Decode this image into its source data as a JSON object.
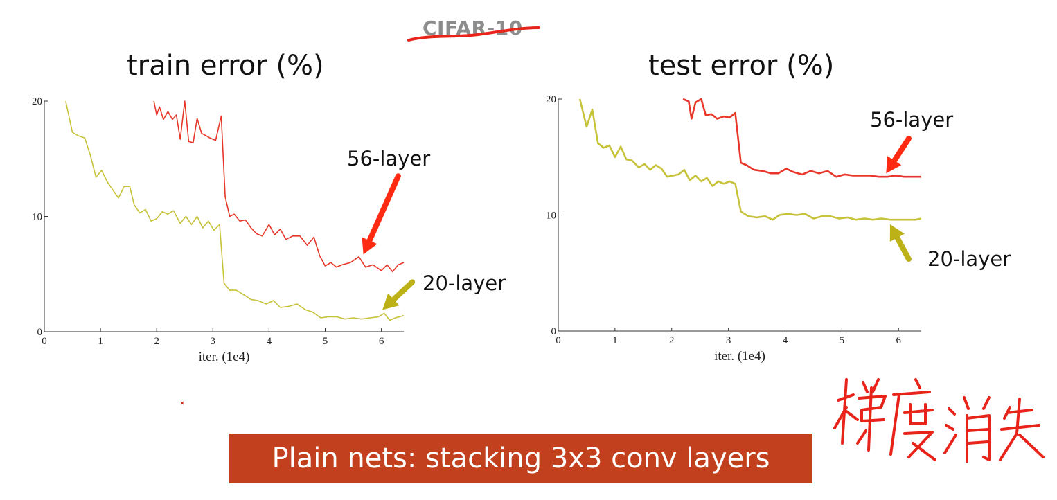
{
  "header": {
    "crossed_out_label": "CIFAR-10",
    "handwriting": "梯度消失"
  },
  "banner": {
    "text": "Plain nets: stacking 3x3 conv layers"
  },
  "colors": {
    "layer56": "#e8362a",
    "layer20": "#c6c23a",
    "arrow56": "#ff2a12",
    "arrow20": "#bdb118",
    "annotation_red": "#e8241a",
    "banner_bg": "#c2401d"
  },
  "chart_data": [
    {
      "type": "line",
      "title": "train error (%)",
      "xlabel": "iter. (1e4)",
      "ylabel": "",
      "xlim": [
        0,
        6.4
      ],
      "ylim": [
        0,
        20
      ],
      "x_ticks": [
        "0",
        "1",
        "2",
        "3",
        "4",
        "5",
        "6"
      ],
      "y_ticks": [
        "0",
        "10",
        "20"
      ],
      "series": [
        {
          "name": "56-layer",
          "color": "#e8362a",
          "points": [
            [
              1.95,
              20.0
            ],
            [
              2.0,
              18.8
            ],
            [
              2.05,
              19.5
            ],
            [
              2.12,
              18.4
            ],
            [
              2.2,
              19.1
            ],
            [
              2.28,
              18.4
            ],
            [
              2.35,
              18.8
            ],
            [
              2.42,
              16.7
            ],
            [
              2.5,
              20.0
            ],
            [
              2.57,
              16.5
            ],
            [
              2.65,
              16.4
            ],
            [
              2.72,
              18.5
            ],
            [
              2.8,
              17.2
            ],
            [
              2.88,
              17.0
            ],
            [
              2.95,
              16.8
            ],
            [
              3.05,
              16.6
            ],
            [
              3.15,
              18.7
            ],
            [
              3.22,
              11.7
            ],
            [
              3.3,
              10.0
            ],
            [
              3.38,
              10.2
            ],
            [
              3.48,
              9.6
            ],
            [
              3.58,
              9.7
            ],
            [
              3.68,
              9.0
            ],
            [
              3.78,
              8.5
            ],
            [
              3.88,
              8.3
            ],
            [
              4.0,
              9.3
            ],
            [
              4.1,
              8.4
            ],
            [
              4.2,
              8.9
            ],
            [
              4.3,
              8.0
            ],
            [
              4.42,
              8.3
            ],
            [
              4.55,
              8.3
            ],
            [
              4.68,
              7.5
            ],
            [
              4.8,
              8.2
            ],
            [
              4.9,
              6.6
            ],
            [
              5.0,
              5.7
            ],
            [
              5.1,
              6.0
            ],
            [
              5.2,
              5.6
            ],
            [
              5.3,
              5.8
            ],
            [
              5.45,
              6.0
            ],
            [
              5.6,
              6.5
            ],
            [
              5.72,
              5.6
            ],
            [
              5.85,
              5.8
            ],
            [
              6.0,
              5.3
            ],
            [
              6.1,
              5.8
            ],
            [
              6.2,
              5.2
            ],
            [
              6.3,
              5.8
            ],
            [
              6.4,
              6.0
            ]
          ]
        },
        {
          "name": "20-layer",
          "color": "#c6c23a",
          "points": [
            [
              0.38,
              20.0
            ],
            [
              0.5,
              17.3
            ],
            [
              0.6,
              17.0
            ],
            [
              0.72,
              16.8
            ],
            [
              0.82,
              15.3
            ],
            [
              0.92,
              13.4
            ],
            [
              1.02,
              14.0
            ],
            [
              1.12,
              13.0
            ],
            [
              1.22,
              12.3
            ],
            [
              1.32,
              11.6
            ],
            [
              1.42,
              12.6
            ],
            [
              1.52,
              12.6
            ],
            [
              1.6,
              11.0
            ],
            [
              1.7,
              10.3
            ],
            [
              1.8,
              10.6
            ],
            [
              1.9,
              9.6
            ],
            [
              2.0,
              9.8
            ],
            [
              2.1,
              10.4
            ],
            [
              2.2,
              10.2
            ],
            [
              2.3,
              10.5
            ],
            [
              2.42,
              9.4
            ],
            [
              2.52,
              10.0
            ],
            [
              2.62,
              9.3
            ],
            [
              2.72,
              10.0
            ],
            [
              2.82,
              9.0
            ],
            [
              2.92,
              9.6
            ],
            [
              3.02,
              8.8
            ],
            [
              3.12,
              9.3
            ],
            [
              3.2,
              4.2
            ],
            [
              3.3,
              3.6
            ],
            [
              3.42,
              3.6
            ],
            [
              3.55,
              3.2
            ],
            [
              3.68,
              2.8
            ],
            [
              3.8,
              2.7
            ],
            [
              3.95,
              2.4
            ],
            [
              4.08,
              2.7
            ],
            [
              4.2,
              2.1
            ],
            [
              4.35,
              2.2
            ],
            [
              4.5,
              2.4
            ],
            [
              4.65,
              1.9
            ],
            [
              4.78,
              1.7
            ],
            [
              4.92,
              1.2
            ],
            [
              5.05,
              1.3
            ],
            [
              5.2,
              1.3
            ],
            [
              5.35,
              1.1
            ],
            [
              5.5,
              1.2
            ],
            [
              5.65,
              1.1
            ],
            [
              5.8,
              1.2
            ],
            [
              5.95,
              1.3
            ],
            [
              6.05,
              1.6
            ],
            [
              6.15,
              1.0
            ],
            [
              6.25,
              1.2
            ],
            [
              6.4,
              1.4
            ]
          ]
        }
      ],
      "annotations": [
        {
          "label": "56-layer",
          "arrow_color": "#ff2a12",
          "arrow_tail": [
            6.3,
            13.5
          ],
          "arrow_head": [
            5.68,
            6.7
          ]
        },
        {
          "label": "20-layer",
          "arrow_color": "#bdb118",
          "arrow_tail": [
            6.55,
            4.3
          ],
          "arrow_head": [
            6.02,
            1.9
          ]
        }
      ]
    },
    {
      "type": "line",
      "title": "test error (%)",
      "xlabel": "iter. (1e4)",
      "ylabel": "",
      "xlim": [
        0,
        6.4
      ],
      "ylim": [
        0,
        20
      ],
      "x_ticks": [
        "0",
        "1",
        "2",
        "3",
        "4",
        "5",
        "6"
      ],
      "y_ticks": [
        "0",
        "10",
        "20"
      ],
      "series": [
        {
          "name": "56-layer",
          "color": "#e8362a",
          "points": [
            [
              2.2,
              20.0
            ],
            [
              2.3,
              19.8
            ],
            [
              2.35,
              18.3
            ],
            [
              2.42,
              19.7
            ],
            [
              2.52,
              20.0
            ],
            [
              2.6,
              18.6
            ],
            [
              2.7,
              18.7
            ],
            [
              2.8,
              18.3
            ],
            [
              2.92,
              18.5
            ],
            [
              3.02,
              18.4
            ],
            [
              3.12,
              18.8
            ],
            [
              3.22,
              14.5
            ],
            [
              3.32,
              14.3
            ],
            [
              3.45,
              13.9
            ],
            [
              3.6,
              13.8
            ],
            [
              3.75,
              13.6
            ],
            [
              3.88,
              13.6
            ],
            [
              4.02,
              14.0
            ],
            [
              4.15,
              13.7
            ],
            [
              4.3,
              13.5
            ],
            [
              4.45,
              13.8
            ],
            [
              4.6,
              13.6
            ],
            [
              4.75,
              13.8
            ],
            [
              4.9,
              13.3
            ],
            [
              5.05,
              13.5
            ],
            [
              5.2,
              13.4
            ],
            [
              5.35,
              13.4
            ],
            [
              5.5,
              13.4
            ],
            [
              5.65,
              13.3
            ],
            [
              5.8,
              13.3
            ],
            [
              5.95,
              13.4
            ],
            [
              6.1,
              13.3
            ],
            [
              6.25,
              13.3
            ],
            [
              6.4,
              13.3
            ]
          ]
        },
        {
          "name": "20-layer",
          "color": "#c6c23a",
          "points": [
            [
              0.38,
              20.0
            ],
            [
              0.5,
              17.6
            ],
            [
              0.6,
              19.1
            ],
            [
              0.7,
              16.2
            ],
            [
              0.8,
              15.8
            ],
            [
              0.9,
              16.0
            ],
            [
              1.0,
              15.0
            ],
            [
              1.1,
              15.9
            ],
            [
              1.2,
              14.8
            ],
            [
              1.3,
              14.7
            ],
            [
              1.42,
              14.1
            ],
            [
              1.52,
              14.4
            ],
            [
              1.62,
              13.9
            ],
            [
              1.72,
              14.3
            ],
            [
              1.82,
              14.0
            ],
            [
              1.92,
              13.3
            ],
            [
              2.02,
              13.4
            ],
            [
              2.12,
              13.5
            ],
            [
              2.22,
              13.9
            ],
            [
              2.32,
              13.0
            ],
            [
              2.42,
              13.4
            ],
            [
              2.52,
              12.9
            ],
            [
              2.62,
              13.2
            ],
            [
              2.72,
              12.5
            ],
            [
              2.82,
              12.9
            ],
            [
              2.92,
              12.7
            ],
            [
              3.02,
              12.9
            ],
            [
              3.12,
              12.7
            ],
            [
              3.22,
              10.3
            ],
            [
              3.35,
              9.9
            ],
            [
              3.5,
              9.8
            ],
            [
              3.65,
              9.9
            ],
            [
              3.78,
              9.6
            ],
            [
              3.9,
              10.0
            ],
            [
              4.05,
              10.1
            ],
            [
              4.2,
              10.0
            ],
            [
              4.35,
              10.1
            ],
            [
              4.5,
              9.7
            ],
            [
              4.65,
              9.9
            ],
            [
              4.8,
              9.9
            ],
            [
              4.95,
              9.7
            ],
            [
              5.1,
              9.8
            ],
            [
              5.25,
              9.6
            ],
            [
              5.4,
              9.7
            ],
            [
              5.55,
              9.6
            ],
            [
              5.7,
              9.7
            ],
            [
              5.85,
              9.6
            ],
            [
              6.0,
              9.6
            ],
            [
              6.15,
              9.6
            ],
            [
              6.3,
              9.6
            ],
            [
              6.4,
              9.7
            ]
          ]
        }
      ],
      "annotations": [
        {
          "label": "56-layer",
          "arrow_color": "#ff2a12",
          "arrow_tail": [
            6.18,
            16.6
          ],
          "arrow_head": [
            5.78,
            13.6
          ]
        },
        {
          "label": "20-layer",
          "arrow_color": "#bdb118",
          "arrow_tail": [
            6.18,
            6.2
          ],
          "arrow_head": [
            5.85,
            9.2
          ]
        }
      ]
    }
  ]
}
